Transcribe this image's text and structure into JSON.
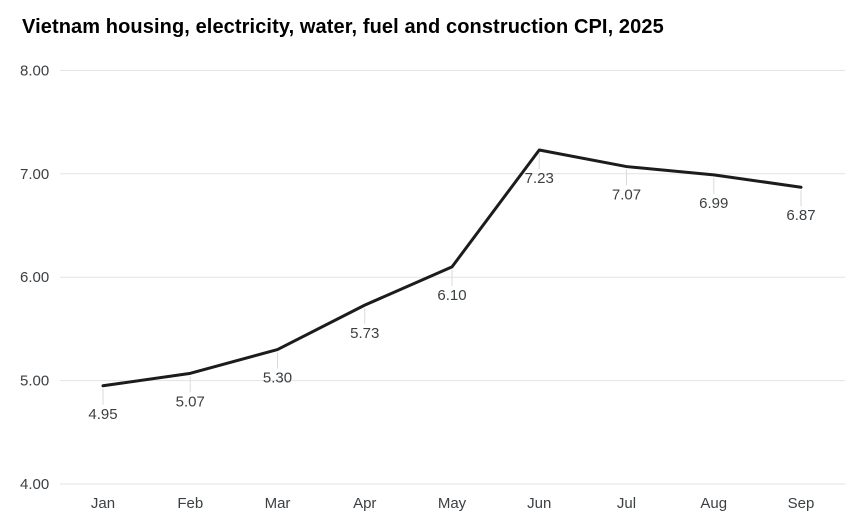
{
  "chart_data": {
    "type": "line",
    "title": "Vietnam housing, electricity, water, fuel and construction CPI, 2025",
    "categories": [
      "Jan",
      "Feb",
      "Mar",
      "Apr",
      "May",
      "Jun",
      "Jul",
      "Aug",
      "Sep"
    ],
    "series": [
      {
        "name": "Vietnam housing, electricity, water, fuel and construction CPI",
        "values": [
          4.95,
          5.07,
          5.3,
          5.73,
          6.1,
          7.23,
          7.07,
          6.99,
          6.87
        ]
      }
    ],
    "data_labels": [
      "4.95",
      "5.07",
      "5.30",
      "5.73",
      "6.10",
      "7.23",
      "7.07",
      "6.99",
      "6.87"
    ],
    "xlabel": "",
    "ylabel": "",
    "ylim": [
      4,
      8
    ],
    "ytick_step": 1,
    "ytick_labels": [
      "4.00",
      "5.00",
      "6.00",
      "7.00",
      "8.00"
    ],
    "grid": "horizontal-only",
    "legend": "none",
    "colors": {
      "line": "#1c1c1c",
      "gridline": "#e3e3e3",
      "leader_line": "#dadada",
      "data_label": "#3c4043",
      "axis_label": "#3c4043",
      "title": "#000000",
      "background": "#ffffff"
    }
  }
}
